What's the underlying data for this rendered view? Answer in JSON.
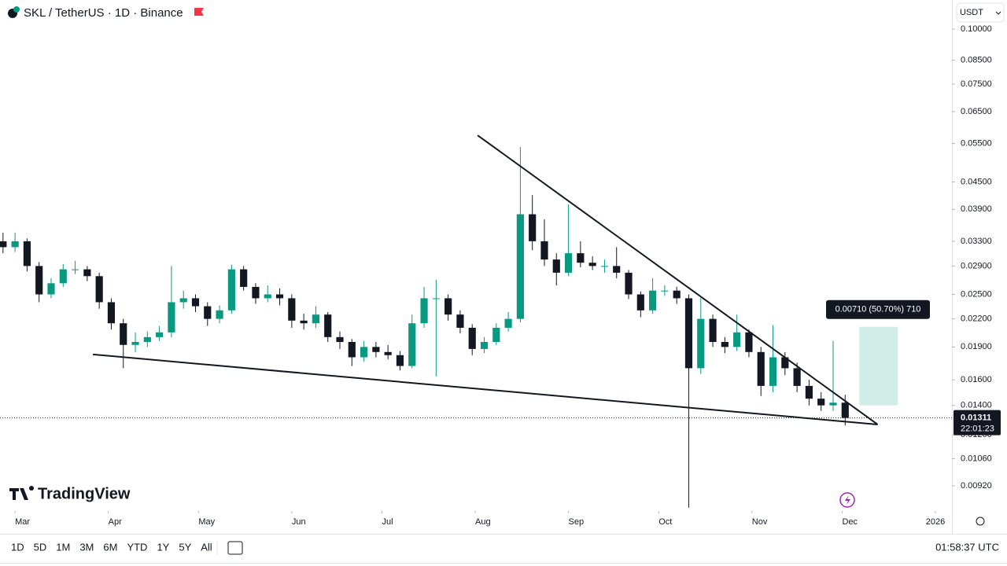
{
  "chart_data": {
    "type": "candlestick",
    "title": "SKL / TetherUS · 1D · Binance",
    "currency": "USDT",
    "brand": "TradingView",
    "log_scale": true,
    "up_color": "#089981",
    "down_color": "#131722",
    "xlim": [
      -5,
      311.5
    ],
    "xticks": [
      {
        "value": 0,
        "label": "Mar"
      },
      {
        "value": 31,
        "label": "Apr"
      },
      {
        "value": 61,
        "label": "May"
      },
      {
        "value": 92,
        "label": "Jun"
      },
      {
        "value": 122,
        "label": "Jul"
      },
      {
        "value": 153,
        "label": "Aug"
      },
      {
        "value": 184,
        "label": "Sep"
      },
      {
        "value": 214,
        "label": "Oct"
      },
      {
        "value": 245,
        "label": "Nov"
      },
      {
        "value": 275,
        "label": "Dec"
      },
      {
        "value": 306,
        "label": "2026"
      }
    ],
    "ylim": [
      0.00813,
      0.1164
    ],
    "yticks": [
      {
        "value": 0.1,
        "label": "0.10000"
      },
      {
        "value": 0.085,
        "label": "0.08500"
      },
      {
        "value": 0.075,
        "label": "0.07500"
      },
      {
        "value": 0.065,
        "label": "0.06500"
      },
      {
        "value": 0.055,
        "label": "0.05500"
      },
      {
        "value": 0.045,
        "label": "0.04500"
      },
      {
        "value": 0.039,
        "label": "0.03900"
      },
      {
        "value": 0.033,
        "label": "0.03300"
      },
      {
        "value": 0.029,
        "label": "0.02900"
      },
      {
        "value": 0.025,
        "label": "0.02500"
      },
      {
        "value": 0.022,
        "label": "0.02200"
      },
      {
        "value": 0.019,
        "label": "0.01900"
      },
      {
        "value": 0.016,
        "label": "0.01600"
      },
      {
        "value": 0.014,
        "label": "0.01400"
      },
      {
        "value": 0.012,
        "label": "0.01200"
      },
      {
        "value": 0.0106,
        "label": "0.01060"
      },
      {
        "value": 0.0092,
        "label": "0.00920"
      }
    ],
    "x": [
      -4,
      0,
      4,
      8,
      12,
      16,
      20,
      24,
      28,
      32,
      36,
      40,
      44,
      48,
      52,
      56,
      60,
      64,
      68,
      72,
      76,
      80,
      84,
      88,
      92,
      96,
      100,
      104,
      108,
      112,
      116,
      120,
      124,
      128,
      132,
      136,
      140,
      144,
      148,
      152,
      156,
      160,
      164,
      168,
      172,
      176,
      180,
      184,
      188,
      192,
      196,
      200,
      204,
      208,
      212,
      216,
      220,
      224,
      228,
      232,
      236,
      240,
      244,
      248,
      252,
      256,
      260,
      264,
      268,
      272,
      276
    ],
    "ohlc": [
      [
        0.033,
        0.0345,
        0.031,
        0.032
      ],
      [
        0.032,
        0.0345,
        0.0312,
        0.033
      ],
      [
        0.033,
        0.0335,
        0.0282,
        0.029
      ],
      [
        0.029,
        0.0296,
        0.024,
        0.025
      ],
      [
        0.025,
        0.0272,
        0.0245,
        0.0265
      ],
      [
        0.0265,
        0.0293,
        0.026,
        0.0285
      ],
      [
        0.0285,
        0.0298,
        0.0278,
        0.0285
      ],
      [
        0.0285,
        0.029,
        0.0268,
        0.0275
      ],
      [
        0.0275,
        0.028,
        0.0232,
        0.024
      ],
      [
        0.024,
        0.0245,
        0.0208,
        0.0215
      ],
      [
        0.0215,
        0.022,
        0.017,
        0.0192
      ],
      [
        0.0192,
        0.0205,
        0.0185,
        0.0195
      ],
      [
        0.0195,
        0.0206,
        0.019,
        0.02
      ],
      [
        0.02,
        0.0212,
        0.0196,
        0.0205
      ],
      [
        0.0205,
        0.029,
        0.02,
        0.024
      ],
      [
        0.024,
        0.0255,
        0.0232,
        0.0245
      ],
      [
        0.0245,
        0.025,
        0.0228,
        0.0235
      ],
      [
        0.0235,
        0.024,
        0.0212,
        0.022
      ],
      [
        0.022,
        0.0236,
        0.0215,
        0.023
      ],
      [
        0.023,
        0.0292,
        0.0226,
        0.0285
      ],
      [
        0.0285,
        0.029,
        0.0255,
        0.026
      ],
      [
        0.026,
        0.0265,
        0.0238,
        0.0245
      ],
      [
        0.0245,
        0.0262,
        0.024,
        0.025
      ],
      [
        0.025,
        0.0258,
        0.0236,
        0.0245
      ],
      [
        0.0245,
        0.025,
        0.021,
        0.0218
      ],
      [
        0.0218,
        0.0226,
        0.0208,
        0.0215
      ],
      [
        0.0215,
        0.0235,
        0.021,
        0.0225
      ],
      [
        0.0225,
        0.0228,
        0.0195,
        0.02
      ],
      [
        0.02,
        0.0206,
        0.0188,
        0.0195
      ],
      [
        0.0195,
        0.0198,
        0.0172,
        0.018
      ],
      [
        0.018,
        0.0196,
        0.0176,
        0.019
      ],
      [
        0.019,
        0.0195,
        0.018,
        0.0185
      ],
      [
        0.0185,
        0.0192,
        0.0178,
        0.0182
      ],
      [
        0.0182,
        0.0186,
        0.0168,
        0.0172
      ],
      [
        0.0172,
        0.0225,
        0.017,
        0.0215
      ],
      [
        0.0215,
        0.026,
        0.021,
        0.0245
      ],
      [
        0.0245,
        0.027,
        0.0163,
        0.0245
      ],
      [
        0.0245,
        0.025,
        0.0218,
        0.0225
      ],
      [
        0.0225,
        0.023,
        0.0204,
        0.021
      ],
      [
        0.021,
        0.0214,
        0.0182,
        0.0188
      ],
      [
        0.0188,
        0.02,
        0.0184,
        0.0195
      ],
      [
        0.0195,
        0.0215,
        0.0192,
        0.021
      ],
      [
        0.021,
        0.0228,
        0.0206,
        0.022
      ],
      [
        0.022,
        0.054,
        0.0216,
        0.038
      ],
      [
        0.038,
        0.042,
        0.0315,
        0.033
      ],
      [
        0.033,
        0.037,
        0.029,
        0.03
      ],
      [
        0.03,
        0.031,
        0.0262,
        0.028
      ],
      [
        0.028,
        0.04,
        0.0275,
        0.031
      ],
      [
        0.031,
        0.033,
        0.0288,
        0.0295
      ],
      [
        0.0295,
        0.0305,
        0.0284,
        0.029
      ],
      [
        0.029,
        0.03,
        0.028,
        0.029
      ],
      [
        0.029,
        0.032,
        0.0272,
        0.028
      ],
      [
        0.028,
        0.0284,
        0.0244,
        0.025
      ],
      [
        0.025,
        0.0254,
        0.0222,
        0.023
      ],
      [
        0.023,
        0.0272,
        0.0226,
        0.0255
      ],
      [
        0.0255,
        0.0262,
        0.0248,
        0.0255
      ],
      [
        0.0255,
        0.026,
        0.0238,
        0.0245
      ],
      [
        0.0245,
        0.025,
        0.0082,
        0.017
      ],
      [
        0.017,
        0.0245,
        0.0165,
        0.022
      ],
      [
        0.022,
        0.0225,
        0.019,
        0.0195
      ],
      [
        0.0195,
        0.02,
        0.0184,
        0.019
      ],
      [
        0.019,
        0.0225,
        0.0186,
        0.0205
      ],
      [
        0.0205,
        0.0208,
        0.018,
        0.0185
      ],
      [
        0.0185,
        0.019,
        0.0147,
        0.0155
      ],
      [
        0.0155,
        0.0213,
        0.015,
        0.018
      ],
      [
        0.018,
        0.0185,
        0.0164,
        0.017
      ],
      [
        0.017,
        0.0175,
        0.015,
        0.0155
      ],
      [
        0.0155,
        0.016,
        0.014,
        0.0145
      ],
      [
        0.0145,
        0.015,
        0.0136,
        0.014
      ],
      [
        0.014,
        0.0196,
        0.0136,
        0.0142
      ],
      [
        0.0142,
        0.0148,
        0.0126,
        0.01311
      ]
    ],
    "last_price": {
      "value": 0.01311,
      "label": "0.01311",
      "countdown": "22:01:23"
    },
    "trendlines": [
      {
        "x": [
          153.8,
          286.8
        ],
        "y": [
          0.0574,
          0.01267
        ]
      },
      {
        "x": [
          25.9,
          286.8
        ],
        "y": [
          0.01827,
          0.01267
        ]
      }
    ],
    "measurement": {
      "label": "0.00710 (50.70%) 710",
      "x": [
        280.7,
        293.5
      ],
      "y": [
        0.014,
        0.0211
      ]
    },
    "ranges": [
      "1D",
      "5D",
      "1M",
      "3M",
      "6M",
      "YTD",
      "1Y",
      "5Y",
      "All"
    ],
    "clock": "01:58:37 UTC"
  }
}
